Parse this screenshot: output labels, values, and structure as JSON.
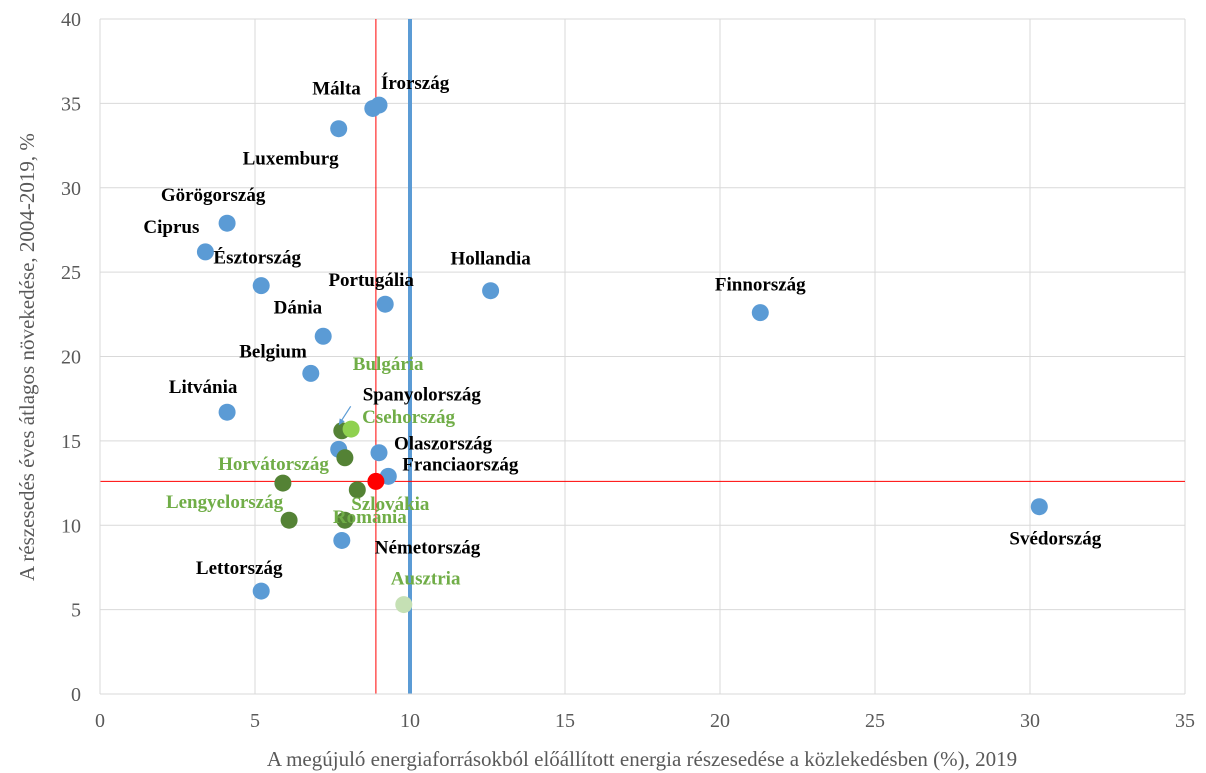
{
  "chart_data": {
    "type": "scatter",
    "xlabel": "A megújuló energiaforrásokból előállított energia részesedése a közlekedésben (%), 2019",
    "ylabel": "A részesedés éves átlagos növekedése, 2004-2019, %",
    "xlim": [
      0,
      35
    ],
    "ylim": [
      0,
      40
    ],
    "xticks": [
      "0",
      "5",
      "10",
      "15",
      "20",
      "25",
      "30",
      "35"
    ],
    "yticks": [
      "0",
      "5",
      "10",
      "15",
      "20",
      "25",
      "30",
      "35",
      "40"
    ],
    "grid": true,
    "colors": {
      "blue": "#5b9bd5",
      "dark_green": "#548235",
      "light_green": "#8fd14f",
      "pale_green": "#c5e0b4",
      "red": "#ff0000",
      "label_black": "#000000",
      "label_green": "#70ad47"
    },
    "reference_lines": {
      "vertical_red_x": 8.9,
      "vertical_blue_x": 10,
      "horizontal_red_y": 12.6
    },
    "points": [
      {
        "label": "Málta",
        "x": 8.8,
        "y": 34.7,
        "color": "blue",
        "label_color": "label_black"
      },
      {
        "label": "Írország",
        "x": 9.0,
        "y": 34.9,
        "color": "blue",
        "label_color": "label_black"
      },
      {
        "label": "Luxemburg",
        "x": 7.7,
        "y": 33.5,
        "color": "blue",
        "label_color": "label_black"
      },
      {
        "label": "Görögország",
        "x": 4.1,
        "y": 27.9,
        "color": "blue",
        "label_color": "label_black"
      },
      {
        "label": "Ciprus",
        "x": 3.4,
        "y": 26.2,
        "color": "blue",
        "label_color": "label_black"
      },
      {
        "label": "Észtország",
        "x": 5.2,
        "y": 24.2,
        "color": "blue",
        "label_color": "label_black"
      },
      {
        "label": "Hollandia",
        "x": 12.6,
        "y": 23.9,
        "color": "blue",
        "label_color": "label_black"
      },
      {
        "label": "Portugália",
        "x": 9.2,
        "y": 23.1,
        "color": "blue",
        "label_color": "label_black"
      },
      {
        "label": "Finnország",
        "x": 21.3,
        "y": 22.6,
        "color": "blue",
        "label_color": "label_black"
      },
      {
        "label": "Dánia",
        "x": 7.2,
        "y": 21.2,
        "color": "blue",
        "label_color": "label_black"
      },
      {
        "label": "Belgium",
        "x": 6.8,
        "y": 19.0,
        "color": "blue",
        "label_color": "label_black"
      },
      {
        "label": "Litvánia",
        "x": 4.1,
        "y": 16.7,
        "color": "blue",
        "label_color": "label_black"
      },
      {
        "label": "Bulgária",
        "x": 7.8,
        "y": 15.6,
        "color": "dark_green",
        "label_color": "label_green"
      },
      {
        "label": "Spanyolország",
        "x": 7.7,
        "y": 14.5,
        "color": "blue",
        "label_color": "label_black"
      },
      {
        "label": "Csehország",
        "x": 8.1,
        "y": 15.7,
        "color": "light_green",
        "label_color": "label_green"
      },
      {
        "label": "Olaszország",
        "x": 9.0,
        "y": 14.3,
        "color": "blue",
        "label_color": "label_black"
      },
      {
        "label": "Horvátország",
        "x": 5.9,
        "y": 12.5,
        "color": "dark_green",
        "label_color": "label_green"
      },
      {
        "label": "Franciaország",
        "x": 9.3,
        "y": 12.9,
        "color": "blue",
        "label_color": "label_black"
      },
      {
        "label": "Szlovákia",
        "x": 8.3,
        "y": 12.1,
        "color": "dark_green",
        "label_color": "label_green"
      },
      {
        "label": "Lengyelország",
        "x": 6.1,
        "y": 10.3,
        "color": "dark_green",
        "label_color": "label_green"
      },
      {
        "label": "Románia",
        "x": 7.9,
        "y": 10.3,
        "color": "dark_green",
        "label_color": "label_green"
      },
      {
        "label": "Svédország",
        "x": 30.3,
        "y": 11.1,
        "color": "blue",
        "label_color": "label_black"
      },
      {
        "label": "Németország",
        "x": 7.8,
        "y": 9.1,
        "color": "blue",
        "label_color": "label_black"
      },
      {
        "label": "Ausztria",
        "x": 9.8,
        "y": 5.3,
        "color": "pale_green",
        "label_color": "label_green"
      },
      {
        "label": "Lettország",
        "x": 5.2,
        "y": 6.1,
        "color": "blue",
        "label_color": "label_black"
      },
      {
        "label": "",
        "x": 7.9,
        "y": 14.0,
        "color": "dark_green",
        "label_color": "label_black"
      },
      {
        "label": "",
        "x": 8.9,
        "y": 12.6,
        "color": "red",
        "label_color": "label_black"
      }
    ]
  }
}
